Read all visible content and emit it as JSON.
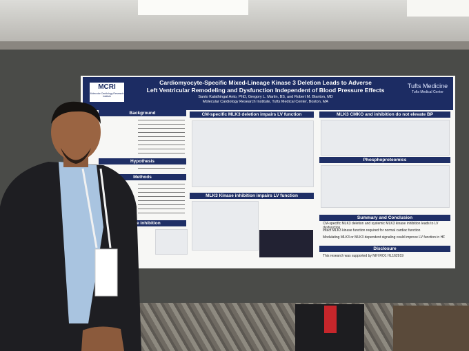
{
  "poster": {
    "logo": "MCRI",
    "logo_caption": "Molecular Cardiology Research Institute",
    "affiliation_logo": "Tufts Medicine",
    "affiliation_caption": "Tufts Medical Center",
    "title_lines": [
      "Cardiomyocyte-Specific Mixed-Lineage Kinase 3 Deletion Leads to Adverse",
      "Left Ventricular Remodeling and Dysfunction Independent of Blood Pressure Effects"
    ],
    "authors": "Santo Kalathingal Anto, PhD, Gregory L. Martin, BS, and Robert M. Blanton, MD",
    "institution": "Molecular Cardiology Research Institute, Tufts Medical Center, Boston, MA",
    "left_headings": [
      "Background",
      "Hypothesis",
      "Methods",
      "Kinase inhibition"
    ],
    "middle_headings": [
      "CM-specific MLK3 deletion impairs LV function",
      "MLK3 Kinase inhibition impairs LV function"
    ],
    "right_headings": [
      "MLK3 CMKO and inhibition do not elevate BP",
      "Phosphoproteomics"
    ],
    "summary": {
      "heading": "Summary and Conclusion",
      "bullets": [
        "CM-specific MLK3 deletion and systemic MLK3 kinase inhibition leads to LV dysfunction",
        "Intact MLK3 kinase function required for normal cardiac function",
        "Modulating MLK3 or MLK3 dependent signaling could improve LV function in HF"
      ]
    },
    "disclosure": {
      "heading": "Disclosure",
      "text": "This research was supported by NIH RO1 HL162919"
    }
  }
}
